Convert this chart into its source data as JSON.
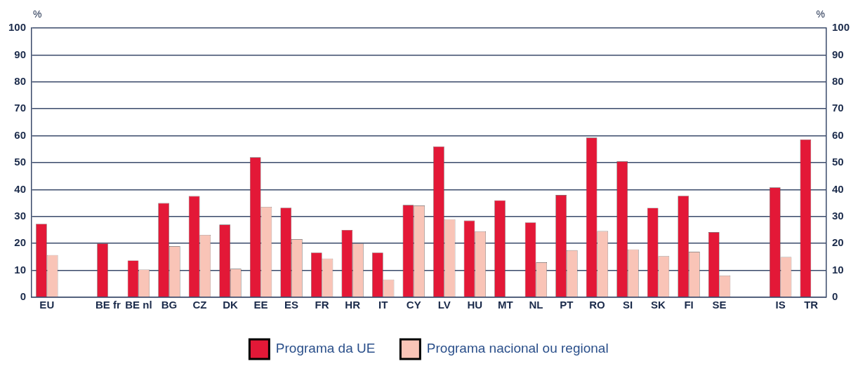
{
  "chart_data": {
    "type": "bar",
    "ylabel": "%",
    "y2label": "%",
    "categories": [
      "EU",
      null,
      "BE fr",
      "BE nl",
      "BG",
      "CZ",
      "DK",
      "EE",
      "ES",
      "FR",
      "HR",
      "IT",
      "CY",
      "LV",
      "HU",
      "MT",
      "NL",
      "PT",
      "RO",
      "SI",
      "SK",
      "FI",
      "SE",
      null,
      "IS",
      "TR"
    ],
    "series": [
      {
        "name": "Programa da UE",
        "color": "#e31837",
        "values": [
          27.3,
          null,
          20,
          13.7,
          35,
          37.6,
          27,
          52,
          33.3,
          16.6,
          25,
          16.6,
          34.3,
          56,
          28.5,
          36,
          27.8,
          38,
          59.3,
          50.5,
          33.2,
          37.7,
          24.2,
          null,
          40.8,
          58.6
        ]
      },
      {
        "name": "Programa nacional ou regional",
        "color": "#f9c4b7",
        "values": [
          15.7,
          null,
          null,
          10.3,
          19,
          23.2,
          10.6,
          33.6,
          21.6,
          14.4,
          20,
          6.6,
          34.1,
          29,
          24.5,
          null,
          13,
          17.5,
          24.6,
          17.8,
          15.3,
          16.9,
          8.1,
          null,
          15,
          null
        ]
      }
    ],
    "ylim": [
      0,
      100
    ],
    "yticks": [
      0,
      10,
      20,
      30,
      40,
      50,
      60,
      70,
      80,
      90,
      100
    ],
    "y2lim": [
      0,
      100
    ],
    "y2ticks": [
      0,
      10,
      20,
      30,
      40,
      50,
      60,
      70,
      80,
      90,
      100
    ],
    "grid": "y",
    "legend": "bottom"
  }
}
